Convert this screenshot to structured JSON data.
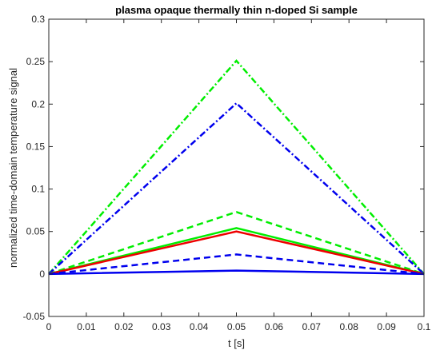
{
  "chart_data": {
    "type": "line",
    "title": "plasma opaque thermally thin n-doped Si sample",
    "xlabel": "t [s]",
    "ylabel": "normalized time-domain temperature signal",
    "xlim": [
      0,
      0.1
    ],
    "ylim": [
      -0.05,
      0.3
    ],
    "xticks": [
      "0",
      "0.01",
      "0.02",
      "0.03",
      "0.04",
      "0.05",
      "0.06",
      "0.07",
      "0.08",
      "0.09",
      "0.1"
    ],
    "yticks": [
      "-0.05",
      "0",
      "0.05",
      "0.1",
      "0.15",
      "0.2",
      "0.25",
      "0.3"
    ],
    "grid": false,
    "legend": "none",
    "x": [
      0,
      0.05,
      0.1
    ],
    "series": [
      {
        "values": [
          0,
          0.251,
          0
        ],
        "color": "#00ee00",
        "style": "dash-dot"
      },
      {
        "values": [
          0,
          0.201,
          0
        ],
        "color": "#0000ee",
        "style": "dash-dot"
      },
      {
        "values": [
          0,
          0.073,
          0
        ],
        "color": "#00ee00",
        "style": "dashed"
      },
      {
        "values": [
          0,
          0.054,
          0
        ],
        "color": "#00ee00",
        "style": "solid"
      },
      {
        "values": [
          0,
          0.05,
          0
        ],
        "color": "#ee0000",
        "style": "solid"
      },
      {
        "values": [
          0,
          0.023,
          0
        ],
        "color": "#0000ee",
        "style": "dashed"
      },
      {
        "values": [
          0,
          0.004,
          0
        ],
        "color": "#0000ee",
        "style": "solid"
      }
    ]
  }
}
